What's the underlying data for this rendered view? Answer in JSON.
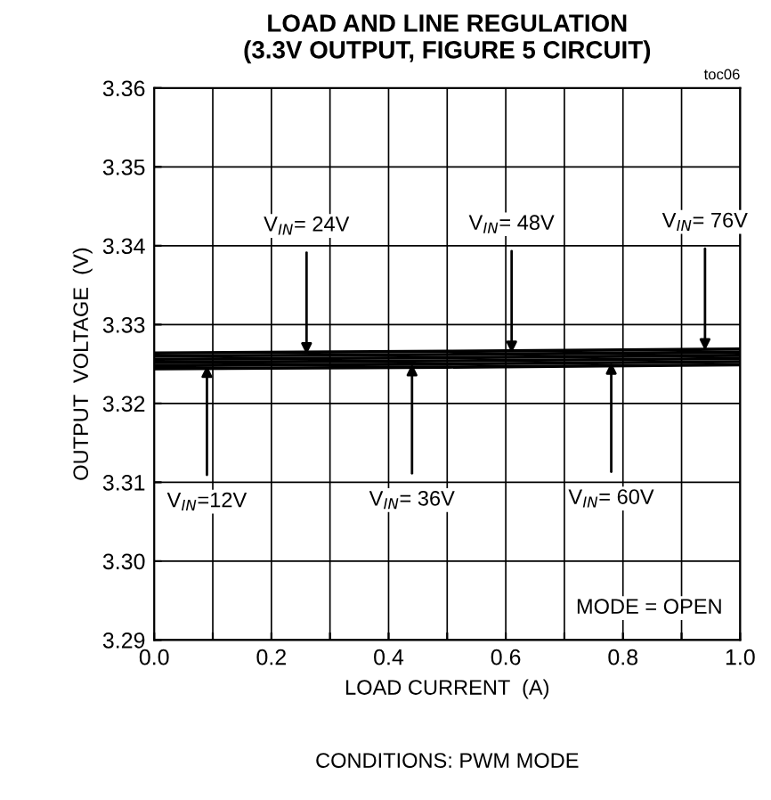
{
  "chart_data": {
    "type": "line",
    "title": "LOAD AND LINE REGULATION\n(3.3V OUTPUT, FIGURE 5 CIRCUIT)",
    "xlabel": "LOAD CURRENT  (A)",
    "ylabel": "OUTPUT  VOLTAGE  (V)",
    "x": [
      0,
      0.5,
      1
    ],
    "series": [
      {
        "color": "#000000",
        "values": [
          3.3244,
          3.3246,
          3.3249
        ]
      },
      {
        "color": "#000000",
        "values": [
          3.3248,
          3.325,
          3.3253
        ]
      },
      {
        "color": "#000000",
        "values": [
          3.3252,
          3.3254,
          3.3257
        ]
      },
      {
        "color": "#000000",
        "values": [
          3.3256,
          3.3258,
          3.3261
        ]
      },
      {
        "color": "#000000",
        "values": [
          3.326,
          3.3262,
          3.3265
        ]
      },
      {
        "color": "#000000",
        "values": [
          3.3264,
          3.3266,
          3.3269
        ]
      }
    ],
    "xlim": [
      0,
      1
    ],
    "xticks": [
      {
        "value": 0,
        "label": "0.0"
      },
      {
        "value": 0.1,
        "label": null
      },
      0.2,
      {
        "value": 0.3,
        "label": null
      },
      0.4,
      {
        "value": 0.5,
        "label": null
      },
      0.6,
      {
        "value": 0.7,
        "label": null
      },
      0.8,
      {
        "value": 0.9,
        "label": null
      },
      {
        "value": 1,
        "label": "1.0"
      }
    ],
    "ylim": [
      3.29,
      3.36
    ],
    "yticks": [
      {
        "value": 3.29,
        "label": "3.29"
      },
      {
        "value": 3.3,
        "label": "3.30"
      },
      {
        "value": 3.31,
        "label": "3.31"
      },
      {
        "value": 3.32,
        "label": "3.32"
      },
      {
        "value": 3.33,
        "label": "3.33"
      },
      {
        "value": 3.34,
        "label": "3.34"
      },
      {
        "value": 3.35,
        "label": "3.35"
      },
      {
        "value": 3.36,
        "label": "3.36"
      }
    ],
    "grid": true,
    "marker": "none",
    "line_style": "solid",
    "legend": false,
    "annotations": [
      {
        "text": "V$_{IN}$=12V",
        "x": 0.09,
        "y": 3.3248
      },
      {
        "text": "V$_{IN}$= 24V",
        "x": 0.26,
        "y": 3.3262
      },
      {
        "text": "V$_{IN}$= 36V",
        "x": 0.44,
        "y": 3.325
      },
      {
        "text": "V$_{IN}$= 48V",
        "x": 0.61,
        "y": 3.3264
      },
      {
        "text": "V$_{IN}$= 60V",
        "x": 0.78,
        "y": 3.3252
      },
      {
        "text": "V$_{IN}$= 76V",
        "x": 0.94,
        "y": 3.3267
      },
      "MODE = OPEN",
      "toc06",
      "CONDITIONS: PWM MODE"
    ]
  }
}
